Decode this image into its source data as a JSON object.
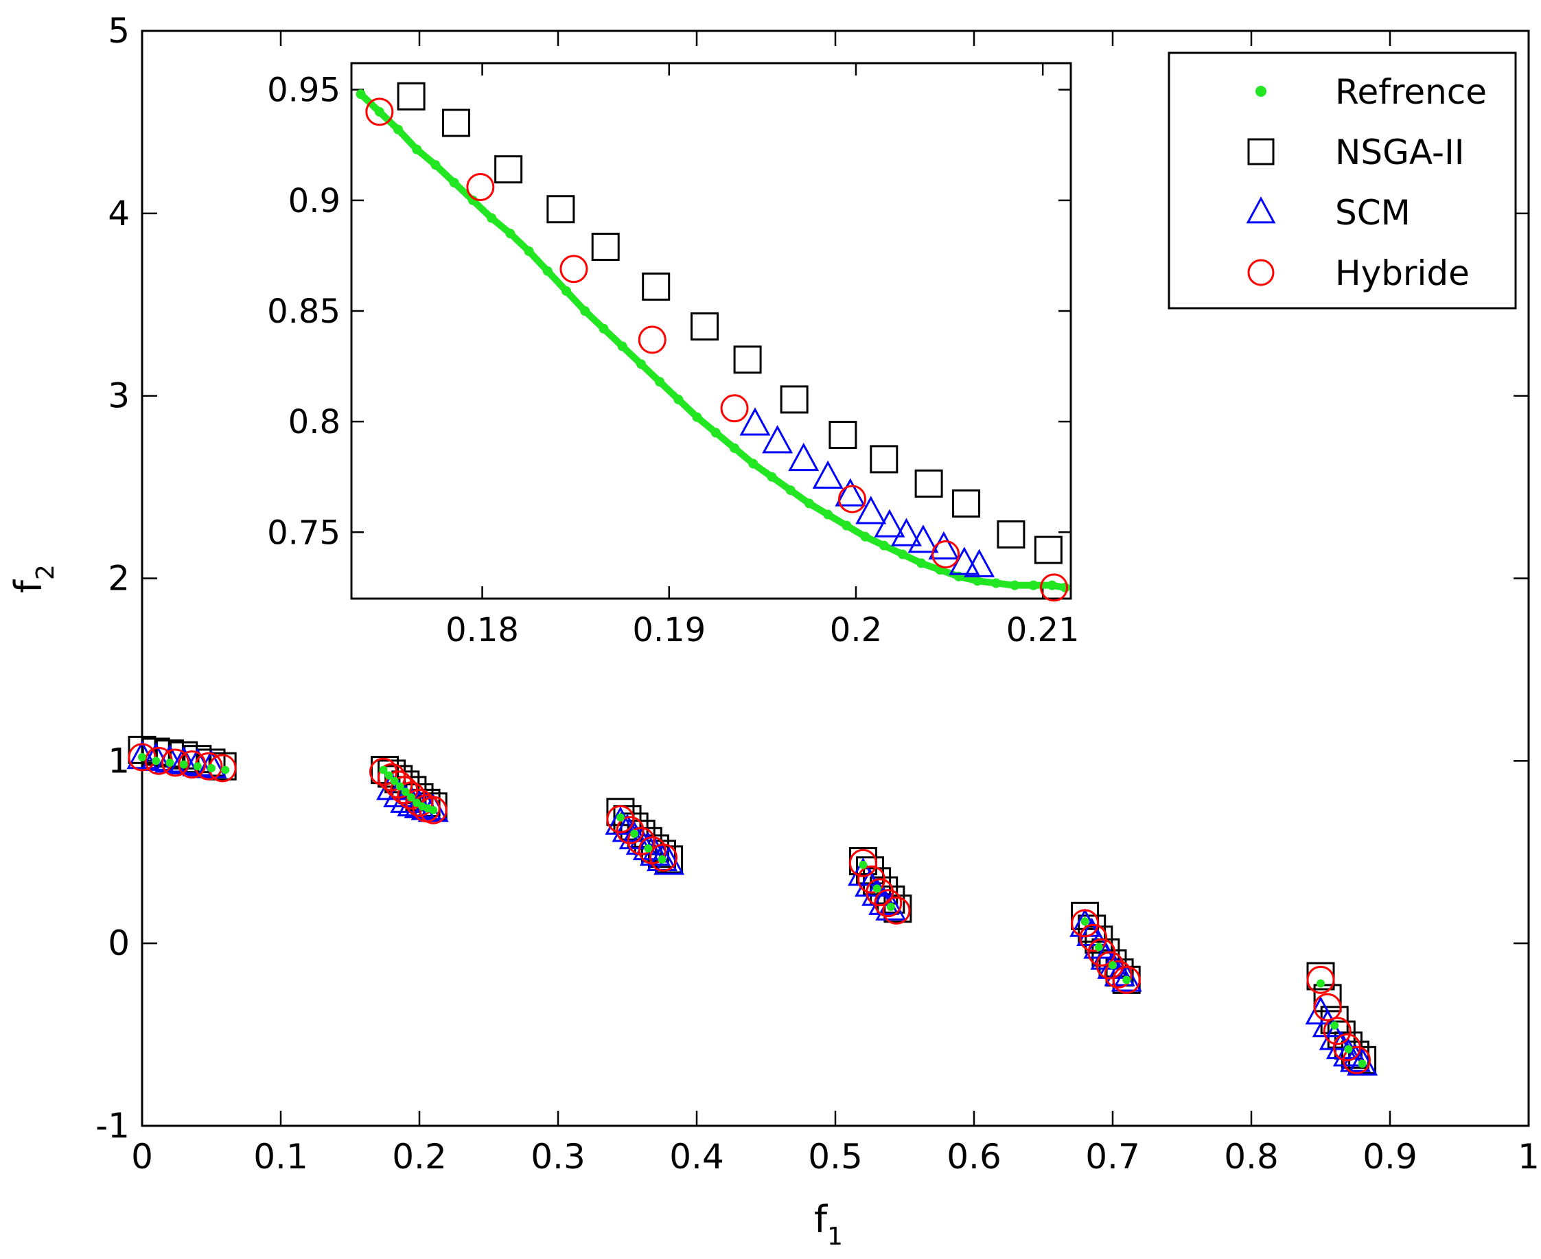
{
  "chart_data": [
    {
      "type": "scatter",
      "title": "",
      "xlabel": "f",
      "xlabel_subscript": "1",
      "ylabel": "f",
      "ylabel_subscript": "2",
      "xlim": [
        0,
        1
      ],
      "ylim": [
        -1,
        5
      ],
      "x_ticks": [
        0,
        0.1,
        0.2,
        0.3,
        0.4,
        0.5,
        0.6,
        0.7,
        0.8,
        0.9,
        1
      ],
      "x_tick_labels": [
        "0",
        "0.1",
        "0.2",
        "0.3",
        "0.4",
        "0.5",
        "0.6",
        "0.7",
        "0.8",
        "0.9",
        "1"
      ],
      "y_ticks": [
        -1,
        0,
        1,
        2,
        3,
        4,
        5
      ],
      "y_tick_labels": [
        "-1",
        "0",
        "1",
        "2",
        "3",
        "4",
        "5"
      ],
      "grid": false,
      "legend": {
        "position": "top-right",
        "entries": [
          "Refrence",
          "NSGA-II",
          "SCM",
          "Hybride"
        ]
      },
      "colors": {
        "Refrence": "#22e622",
        "NSGA-II": "#000000",
        "SCM": "#0000ff",
        "Hybride": "#ff0000"
      },
      "clusters": [
        {
          "x_range": [
            0.0,
            0.06
          ],
          "y_range": [
            1.06,
            0.97
          ]
        },
        {
          "x_range": [
            0.175,
            0.21
          ],
          "y_range": [
            0.95,
            0.73
          ]
        },
        {
          "x_range": [
            0.345,
            0.38
          ],
          "y_range": [
            0.72,
            0.45
          ]
        },
        {
          "x_range": [
            0.52,
            0.545
          ],
          "y_range": [
            0.45,
            0.18
          ]
        },
        {
          "x_range": [
            0.68,
            0.71
          ],
          "y_range": [
            0.15,
            -0.2
          ]
        },
        {
          "x_range": [
            0.85,
            0.88
          ],
          "y_range": [
            -0.18,
            -0.65
          ]
        }
      ],
      "series": [
        {
          "name": "NSGA-II",
          "marker": "square",
          "x": [
            0.0,
            0.01,
            0.02,
            0.03,
            0.04,
            0.05,
            0.058,
            0.175,
            0.18,
            0.185,
            0.19,
            0.195,
            0.2,
            0.205,
            0.21,
            0.345,
            0.35,
            0.355,
            0.36,
            0.365,
            0.37,
            0.375,
            0.38,
            0.52,
            0.525,
            0.53,
            0.535,
            0.54,
            0.545,
            0.68,
            0.685,
            0.69,
            0.695,
            0.7,
            0.705,
            0.71,
            0.85,
            0.855,
            0.86,
            0.865,
            0.87,
            0.875,
            0.88
          ],
          "y": [
            1.06,
            1.05,
            1.04,
            1.03,
            1.01,
            0.99,
            0.97,
            0.95,
            0.93,
            0.9,
            0.87,
            0.84,
            0.8,
            0.77,
            0.75,
            0.72,
            0.68,
            0.64,
            0.6,
            0.56,
            0.52,
            0.49,
            0.46,
            0.45,
            0.4,
            0.34,
            0.29,
            0.24,
            0.19,
            0.15,
            0.08,
            0.02,
            -0.05,
            -0.11,
            -0.16,
            -0.2,
            -0.18,
            -0.3,
            -0.42,
            -0.5,
            -0.56,
            -0.61,
            -0.64
          ]
        },
        {
          "name": "SCM",
          "marker": "triangle",
          "x": [
            0.0,
            0.01,
            0.02,
            0.03,
            0.04,
            0.05,
            0.18,
            0.185,
            0.19,
            0.195,
            0.2,
            0.205,
            0.21,
            0.345,
            0.35,
            0.355,
            0.36,
            0.365,
            0.37,
            0.375,
            0.38,
            0.52,
            0.525,
            0.53,
            0.535,
            0.54,
            0.68,
            0.685,
            0.69,
            0.695,
            0.7,
            0.705,
            0.71,
            0.85,
            0.855,
            0.86,
            0.865,
            0.87,
            0.875,
            0.88
          ],
          "y": [
            1.02,
            1.01,
            1.0,
            0.99,
            0.98,
            0.97,
            0.85,
            0.81,
            0.78,
            0.76,
            0.75,
            0.74,
            0.73,
            0.66,
            0.62,
            0.58,
            0.55,
            0.52,
            0.49,
            0.46,
            0.44,
            0.38,
            0.32,
            0.27,
            0.22,
            0.19,
            0.1,
            0.05,
            -0.02,
            -0.08,
            -0.13,
            -0.17,
            -0.2,
            -0.38,
            -0.45,
            -0.52,
            -0.57,
            -0.61,
            -0.64,
            -0.66
          ]
        },
        {
          "name": "Hybride",
          "marker": "circle",
          "x": [
            0.0,
            0.012,
            0.024,
            0.036,
            0.048,
            0.058,
            0.174,
            0.18,
            0.185,
            0.189,
            0.194,
            0.2,
            0.205,
            0.21,
            0.345,
            0.352,
            0.36,
            0.368,
            0.376,
            0.52,
            0.526,
            0.532,
            0.538,
            0.544,
            0.68,
            0.686,
            0.692,
            0.698,
            0.704,
            0.71,
            0.85,
            0.855,
            0.862,
            0.869,
            0.876
          ],
          "y": [
            1.02,
            1.0,
            0.99,
            0.98,
            0.97,
            0.96,
            0.94,
            0.91,
            0.87,
            0.84,
            0.81,
            0.77,
            0.74,
            0.73,
            0.68,
            0.62,
            0.56,
            0.51,
            0.47,
            0.44,
            0.35,
            0.28,
            0.22,
            0.18,
            0.11,
            0.03,
            -0.05,
            -0.12,
            -0.17,
            -0.2,
            -0.2,
            -0.35,
            -0.48,
            -0.57,
            -0.64
          ]
        },
        {
          "name": "Refrence",
          "marker": "dot",
          "x": [
            0.0,
            0.01,
            0.02,
            0.03,
            0.04,
            0.05,
            0.06,
            0.174,
            0.178,
            0.182,
            0.186,
            0.19,
            0.194,
            0.198,
            0.202,
            0.206,
            0.21,
            0.345,
            0.355,
            0.365,
            0.375,
            0.52,
            0.53,
            0.54,
            0.68,
            0.69,
            0.7,
            0.71,
            0.85,
            0.86,
            0.87,
            0.88
          ],
          "y": [
            1.02,
            1.0,
            0.99,
            0.98,
            0.97,
            0.96,
            0.95,
            0.95,
            0.92,
            0.89,
            0.86,
            0.83,
            0.8,
            0.77,
            0.75,
            0.74,
            0.73,
            0.69,
            0.6,
            0.52,
            0.46,
            0.43,
            0.3,
            0.2,
            0.12,
            -0.02,
            -0.12,
            -0.2,
            -0.22,
            -0.45,
            -0.58,
            -0.66
          ]
        }
      ]
    },
    {
      "type": "scatter",
      "title": "",
      "role": "inset",
      "xlim": [
        0.173,
        0.2115
      ],
      "ylim": [
        0.72,
        0.962
      ],
      "x_ticks": [
        0.18,
        0.19,
        0.2,
        0.21
      ],
      "x_tick_labels": [
        "0.18",
        "0.19",
        "0.2",
        "0.21"
      ],
      "y_ticks": [
        0.75,
        0.8,
        0.85,
        0.9,
        0.95
      ],
      "y_tick_labels": [
        "0.75",
        "0.8",
        "0.85",
        "0.9",
        "0.95"
      ],
      "grid": false,
      "series": [
        {
          "name": "Refrence",
          "marker": "dot",
          "x": [
            0.1735,
            0.1745,
            0.1755,
            0.1765,
            0.1775,
            0.1785,
            0.1795,
            0.1805,
            0.1815,
            0.1825,
            0.1835,
            0.1845,
            0.1855,
            0.1865,
            0.1875,
            0.1885,
            0.1895,
            0.1905,
            0.1915,
            0.1925,
            0.1935,
            0.1945,
            0.1955,
            0.1965,
            0.1975,
            0.1985,
            0.1995,
            0.2005,
            0.2015,
            0.2025,
            0.2035,
            0.2045,
            0.2055,
            0.2065,
            0.2075,
            0.2085,
            0.2095,
            0.2105,
            0.2112
          ],
          "y": [
            0.948,
            0.94,
            0.932,
            0.923,
            0.916,
            0.908,
            0.9,
            0.892,
            0.885,
            0.877,
            0.868,
            0.859,
            0.85,
            0.842,
            0.834,
            0.826,
            0.818,
            0.81,
            0.802,
            0.795,
            0.788,
            0.781,
            0.775,
            0.769,
            0.763,
            0.758,
            0.753,
            0.748,
            0.744,
            0.74,
            0.736,
            0.733,
            0.73,
            0.728,
            0.727,
            0.726,
            0.726,
            0.726,
            0.725
          ]
        },
        {
          "name": "NSGA-II",
          "marker": "square",
          "x": [
            0.1762,
            0.1786,
            0.1814,
            0.1842,
            0.1866,
            0.1893,
            0.1919,
            0.1942,
            0.1967,
            0.1993,
            0.2015,
            0.2039,
            0.2059,
            0.2083,
            0.2103
          ],
          "y": [
            0.947,
            0.935,
            0.914,
            0.896,
            0.879,
            0.861,
            0.843,
            0.828,
            0.81,
            0.794,
            0.783,
            0.772,
            0.763,
            0.749,
            0.742
          ]
        },
        {
          "name": "SCM",
          "marker": "triangle",
          "x": [
            0.1946,
            0.1958,
            0.1972,
            0.1985,
            0.1997,
            0.2008,
            0.2018,
            0.2027,
            0.2036,
            0.2047,
            0.2058,
            0.2066
          ],
          "y": [
            0.799,
            0.791,
            0.783,
            0.775,
            0.767,
            0.759,
            0.753,
            0.749,
            0.746,
            0.743,
            0.736,
            0.735
          ]
        },
        {
          "name": "Hybride",
          "marker": "circle",
          "x": [
            0.1745,
            0.1799,
            0.1849,
            0.1891,
            0.1935,
            0.1998,
            0.2048,
            0.2106
          ],
          "y": [
            0.94,
            0.906,
            0.869,
            0.837,
            0.806,
            0.765,
            0.74,
            0.725
          ]
        }
      ]
    }
  ]
}
